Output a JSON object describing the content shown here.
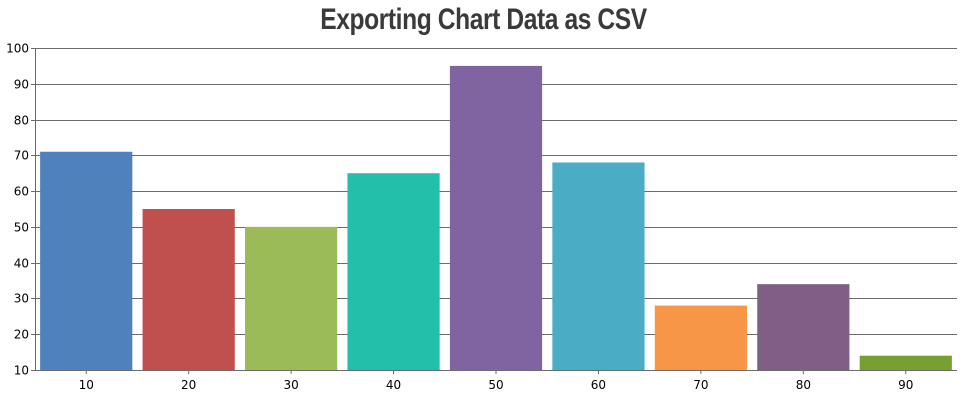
{
  "chart_data": {
    "type": "bar",
    "title": "Exporting Chart Data as CSV",
    "categories": [
      "10",
      "20",
      "30",
      "40",
      "50",
      "60",
      "70",
      "80",
      "90"
    ],
    "values": [
      71,
      55,
      50,
      65,
      95,
      68,
      28,
      34,
      14
    ],
    "colors": [
      "#4f81bc",
      "#c0504e",
      "#9bbb58",
      "#23bfaa",
      "#8064a1",
      "#4aacc5",
      "#f79647",
      "#7f6084",
      "#77a033"
    ],
    "ylim": [
      10,
      100
    ],
    "yticks": [
      "10",
      "20",
      "30",
      "40",
      "50",
      "60",
      "70",
      "80",
      "90",
      "100"
    ],
    "grid": true,
    "xlabel": "",
    "ylabel": ""
  }
}
